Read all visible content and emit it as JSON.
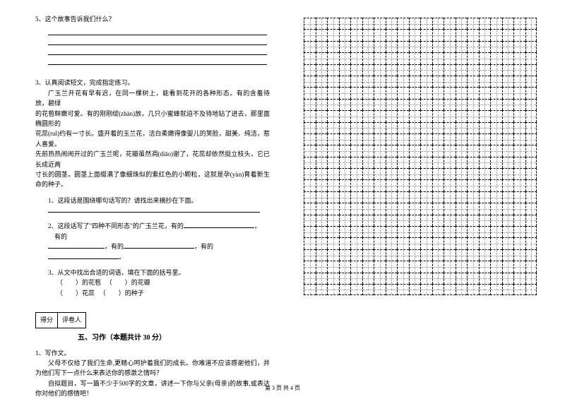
{
  "q5": {
    "label": "5、这个故事告诉我们什么？"
  },
  "q3": {
    "heading": "3、认真阅读短文，完成指定练习。",
    "passage_l1": "广玉兰开花有早有迟，在同一棵树上，能看到花开的各种形态。有的含羞待放，碧绿",
    "passage_l2": "的花苞鲜嫩可爱。有的刚刚绽(zhàn)放，几只小蜜蜂就迫不及待地钻了进去，那里面椭圆形的",
    "passage_l3": "花蕊(ruǐ)约有一寸长。盛开着的玉兰花，洁白柔嫩得像婴儿的笑脸，甜美、纯洁，惹人喜爱。",
    "passage_l4": "先前热热闹闹开过的广玉兰呢，花瓣虽然凋(diāo)谢了，花蕊却依然挺立枝头，它已长成近两",
    "passage_l5": "寸长的圆茎。圆茎上面缀满了像细珠似的紫红色的小颗粒，这就是孕(yùn)育着新生命的种子。",
    "sub1": "1、这段话是围绕哪句话写的？请找出来摘抄在下面。",
    "sub2_a": "2、这段话写了\"四种不同形态\"的广玉兰花，有的",
    "sub2_b": "，",
    "sub2_c": "有的",
    "sub2_d": "，有的",
    "sub2_e": "，有的",
    "sub2_f": "。",
    "sub3": "3、从文中找出合适的词语，填在下面的括号里。",
    "sub3_l1a": "（　　）的花苞",
    "sub3_l1b": "（　　）的花瓣",
    "sub3_l2a": "（　　）花蕊",
    "sub3_l2b": "（　　）的种子"
  },
  "score": {
    "left": "得分",
    "right": "评卷人"
  },
  "section5": {
    "title": "五、习作（本题共计 30 分）",
    "q1": "1、写作文。",
    "p1": "父母不仅给了我们生命,更精心呵护着我们的成长。你难道不应该感谢他们，并为他们写下一点什么来表达你的感激之情吗？",
    "p2": "自拟题目，写一篇不少于500字的文章，讲述一下你与父亲(母亲)的故事,或表达你对他们的感情吧！"
  },
  "grid": {
    "rows": 24,
    "cols": 20
  },
  "footer": "第 3 页 共 4 页",
  "style": {
    "bg": "#ffffff",
    "text": "#000000",
    "font_size_body": 9,
    "font_size_title": 10,
    "font_size_footer": 8,
    "grid_cell_size": 16.5,
    "grid_border": "1px dashed #000"
  }
}
